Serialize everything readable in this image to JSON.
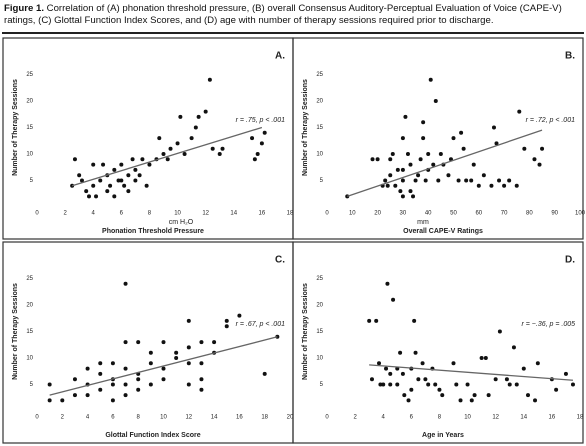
{
  "caption": {
    "label": "Figure 1.",
    "text": "Correlation of (A) phonation threshold pressure, (B) overall Consensus Auditory-Perceptual Evaluation of Voice (CAPE-V) ratings, (C) Glottal Function Index Scores, and (D) age with number of therapy sessions required prior to discharge."
  },
  "chart_data": [
    {
      "type": "scatter",
      "label": "A.",
      "annotation": "r = .75, p < .001",
      "x_unit": "cm H₂O",
      "x_label": "Phonation Threshold Pressure",
      "y_label": "Number of Therapy Sessions",
      "color": "#111111",
      "x": [
        2.5,
        2.7,
        3,
        3.2,
        3.5,
        3.7,
        4,
        4,
        4.2,
        4.5,
        4.7,
        5,
        5,
        5.2,
        5.5,
        5.5,
        5.8,
        6,
        6,
        6.2,
        6.5,
        6.5,
        6.8,
        7,
        7,
        7.3,
        7.5,
        7.8,
        8,
        8.5,
        8.7,
        9,
        9.3,
        9.5,
        10,
        10.2,
        10.5,
        11,
        11.3,
        11.5,
        12,
        12.3,
        12.5,
        13,
        13.2,
        15.3,
        15.5,
        15.7,
        16,
        16.2
      ],
      "y": [
        4,
        9,
        6,
        5,
        3,
        2,
        8,
        4,
        2,
        5,
        8,
        3,
        6,
        4,
        7,
        2,
        5,
        8,
        5,
        4,
        6,
        3,
        9,
        7,
        5,
        6,
        9,
        4,
        8,
        9,
        13,
        10,
        9,
        11,
        12,
        17,
        10,
        13,
        15,
        17,
        18,
        24,
        11,
        10,
        11,
        13,
        9,
        10,
        12,
        14
      ],
      "trendline": {
        "x": [
          2.5,
          16
        ],
        "y": [
          4,
          15
        ]
      },
      "xlim": [
        0,
        18
      ],
      "ylim": [
        0,
        30
      ],
      "xticks": [
        0,
        2,
        4,
        6,
        8,
        10,
        12,
        14,
        16,
        18
      ],
      "yticks": [
        5,
        10,
        15,
        20,
        25
      ]
    },
    {
      "type": "scatter",
      "label": "B.",
      "annotation": "r = .72, p < .001",
      "x_unit": "mm",
      "x_label": "Overall CAPE-V Ratings",
      "y_label": "Number of Therapy Sessions",
      "color": "#111111",
      "x": [
        8,
        18,
        20,
        22,
        23,
        24,
        25,
        25,
        26,
        27,
        28,
        29,
        30,
        30,
        30,
        30,
        31,
        32,
        33,
        33,
        34,
        35,
        36,
        37,
        38,
        38,
        39,
        40,
        40,
        41,
        42,
        43,
        44,
        45,
        46,
        48,
        49,
        50,
        52,
        53,
        54,
        55,
        57,
        58,
        60,
        62,
        65,
        66,
        67,
        68,
        70,
        72,
        75,
        76,
        78,
        82,
        84,
        85
      ],
      "y": [
        2,
        9,
        9,
        4,
        5,
        4,
        6,
        9,
        10,
        4,
        7,
        3,
        2,
        5,
        7,
        13,
        17,
        10,
        8,
        3,
        2,
        5,
        6,
        9,
        13,
        16,
        5,
        7,
        10,
        24,
        8,
        20,
        5,
        10,
        8,
        6,
        9,
        13,
        5,
        14,
        11,
        5,
        5,
        8,
        4,
        6,
        4,
        15,
        12,
        5,
        4,
        5,
        4,
        18,
        11,
        9,
        8,
        11
      ],
      "trendline": {
        "x": [
          8,
          85
        ],
        "y": [
          2,
          14.5
        ]
      },
      "xlim": [
        0,
        100
      ],
      "ylim": [
        0,
        30
      ],
      "xticks": [
        0,
        10,
        20,
        30,
        40,
        50,
        60,
        70,
        80,
        90,
        100
      ],
      "yticks": [
        5,
        10,
        15,
        20,
        25
      ]
    },
    {
      "type": "scatter",
      "label": "C.",
      "annotation": "r = .67, p < .001",
      "x_label": "Glottal Function Index Score",
      "y_label": "Number of Therapy Sessions",
      "color": "#111111",
      "x": [
        1,
        1,
        2,
        3,
        3,
        4,
        4,
        4,
        5,
        5,
        5,
        6,
        6,
        6,
        6,
        7,
        7,
        7,
        7,
        7,
        8,
        8,
        8,
        8,
        9,
        9,
        9,
        10,
        10,
        10,
        11,
        11,
        12,
        12,
        12,
        12,
        13,
        13,
        13,
        13,
        14,
        14,
        15,
        15,
        16,
        18,
        19
      ],
      "y": [
        5,
        2,
        2,
        3,
        6,
        5,
        3,
        8,
        4,
        7,
        9,
        2,
        5,
        9,
        6,
        3,
        5,
        24,
        13,
        8,
        4,
        6,
        7,
        13,
        5,
        9,
        11,
        6,
        8,
        13,
        10,
        11,
        5,
        9,
        17,
        12,
        4,
        6,
        9,
        13,
        11,
        13,
        16,
        17,
        18,
        7,
        14
      ],
      "trendline": {
        "x": [
          1,
          19
        ],
        "y": [
          3,
          14
        ]
      },
      "xlim": [
        0,
        20
      ],
      "ylim": [
        0,
        30
      ],
      "xticks": [
        0,
        2,
        4,
        6,
        8,
        10,
        12,
        14,
        16,
        18,
        20
      ],
      "yticks": [
        5,
        10,
        15,
        20,
        25
      ]
    },
    {
      "type": "scatter",
      "label": "D.",
      "annotation": "r = −.36, p = .005",
      "x_label": "Age in Years",
      "y_label": "Number of Therapy Sessions",
      "color": "#111111",
      "x": [
        3,
        3.2,
        3.5,
        3.7,
        3.8,
        4,
        4.2,
        4.3,
        4.5,
        4.5,
        4.7,
        5,
        5,
        5.2,
        5.4,
        5.5,
        5.8,
        6,
        6,
        6.2,
        6.3,
        6.5,
        6.8,
        7,
        7.2,
        7.5,
        7.7,
        8,
        8.2,
        9,
        9.2,
        9.5,
        10,
        10.3,
        10.5,
        11,
        11.3,
        11.5,
        12,
        12.3,
        12.8,
        13,
        13.3,
        13.5,
        14,
        14.3,
        14.8,
        15,
        16,
        16.3,
        17,
        17.5
      ],
      "y": [
        17,
        6,
        17,
        9,
        5,
        5,
        8,
        24,
        5,
        7,
        21,
        5,
        8,
        11,
        7,
        3,
        2,
        8,
        4,
        17,
        11,
        6,
        9,
        6,
        5,
        8,
        5,
        4,
        3,
        9,
        5,
        2,
        5,
        2,
        3,
        10,
        10,
        3,
        6,
        15,
        6,
        5,
        12,
        5,
        8,
        3,
        2,
        9,
        6,
        4,
        7,
        5
      ],
      "trendline": {
        "x": [
          3,
          17.5
        ],
        "y": [
          8.7,
          5.8
        ]
      },
      "xlim": [
        0,
        18
      ],
      "ylim": [
        0,
        30
      ],
      "xticks": [
        0,
        2,
        4,
        6,
        8,
        10,
        12,
        14,
        16,
        18
      ],
      "yticks": [
        5,
        10,
        15,
        20,
        25
      ]
    }
  ]
}
